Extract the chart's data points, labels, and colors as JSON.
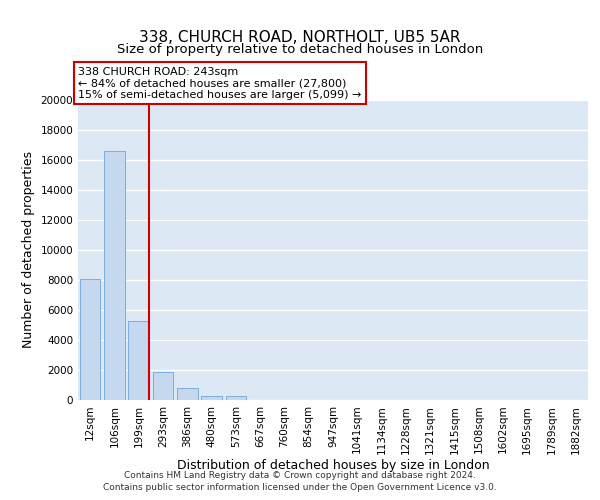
{
  "title_line1": "338, CHURCH ROAD, NORTHOLT, UB5 5AR",
  "title_line2": "Size of property relative to detached houses in London",
  "xlabel": "Distribution of detached houses by size in London",
  "ylabel": "Number of detached properties",
  "bar_labels": [
    "12sqm",
    "106sqm",
    "199sqm",
    "293sqm",
    "386sqm",
    "480sqm",
    "573sqm",
    "667sqm",
    "760sqm",
    "854sqm",
    "947sqm",
    "1041sqm",
    "1134sqm",
    "1228sqm",
    "1321sqm",
    "1415sqm",
    "1508sqm",
    "1602sqm",
    "1695sqm",
    "1789sqm",
    "1882sqm"
  ],
  "bar_values": [
    8100,
    16600,
    5300,
    1850,
    800,
    300,
    270,
    0,
    0,
    0,
    0,
    0,
    0,
    0,
    0,
    0,
    0,
    0,
    0,
    0,
    0
  ],
  "bar_color": "#c5d8f0",
  "bar_edge_color": "#7aaedb",
  "vline_color": "#cc0000",
  "annotation_title": "338 CHURCH ROAD: 243sqm",
  "annotation_line1": "← 84% of detached houses are smaller (27,800)",
  "annotation_line2": "15% of semi-detached houses are larger (5,099) →",
  "annotation_box_color": "#ffffff",
  "annotation_box_edge": "#cc0000",
  "ylim": [
    0,
    20000
  ],
  "yticks": [
    0,
    2000,
    4000,
    6000,
    8000,
    10000,
    12000,
    14000,
    16000,
    18000,
    20000
  ],
  "footnote_line1": "Contains HM Land Registry data © Crown copyright and database right 2024.",
  "footnote_line2": "Contains public sector information licensed under the Open Government Licence v3.0.",
  "fig_bg_color": "#ffffff",
  "plot_bg_color": "#dde8f5",
  "grid_color": "#ffffff",
  "title_fontsize": 11,
  "subtitle_fontsize": 9.5,
  "tick_fontsize": 7.5,
  "label_fontsize": 9,
  "footnote_fontsize": 6.5
}
